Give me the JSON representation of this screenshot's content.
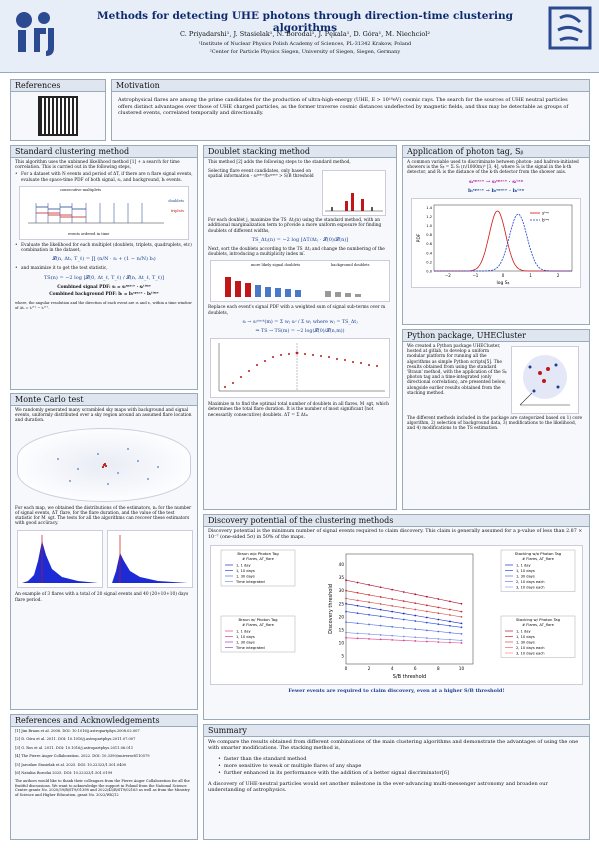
{
  "header": {
    "title": "Methods for detecting UHE photons through direction-time clustering algorithms",
    "authors": "C. Priyadarshi¹, J. Stasielak¹, N. Borodai¹, J. Pękala¹, D. Góra¹, M. Niechciol²",
    "aff1": "¹Institute of Nuclear Physics Polish Academy of Sciences, PL-31342 Krakow, Poland",
    "aff2": "²Center for Particle Physics Siegen, University of Siegen, Siegen, Germany"
  },
  "references_box": {
    "title": "References"
  },
  "motivation": {
    "title": "Motivation",
    "text": "Astrophysical flares are among the prime candidates for the production of ultra-high-energy (UHE, E > 10¹⁸eV) cosmic rays. The search for the sources of UHE neutral particles offers distinct advantages over those of UHE charged particles, as the former traverse cosmic distances undeflected by magnetic fields, and thus may be detectable as groups of clustered events, correlated temporally and directionally."
  },
  "standard": {
    "title": "Standard clustering method",
    "intro": "This algorithm uses the unbinned likelihood method [1] + a search for time correlation. This is carried out in the following steps,",
    "b1": "For a dataset with N events and period of ΔT, if there are n flare signal events, evaluate the space-time PDF of both signal, sᵢ, and background, bᵢ events.",
    "fig_top": "consecutive multiplets",
    "fig_bottom": "events ordered in time",
    "fig_doublets": "doublets",
    "fig_triplets": "triplets",
    "b2": "Evaluate the likelihood for each multiplet (doublets, triplets, quadruplets, etc) combination in the dataset,",
    "eq1": "𝓛(n, Δtᵢ, T_ℓ) = ∏ (n/N · sᵢ + (1 − n/N) bᵢ)",
    "b3": "and maximize it to get the test statistic,",
    "eq2": "TS(n) = −2 log [𝓛(0, Δt_ℓ, T_ℓ) / 𝓛(n, Δt_ℓ, T_ℓ)]",
    "combined_signal": "Combined signal PDF:  sᵢ = sᵢˢᵖᵃᶜᵉ · sᵢᵗⁱᵐᵉ",
    "combined_bg": "Combined background PDF:  bᵢ = bᵢˢᵖᵃᶜᵉ · bᵢᵗⁱᵐᵉ",
    "note": "where, the angular resolution and the direction of each event are σᵢ and rᵢ, within a time window of Δtᵢ = tᵢʲ⁺ⁿ − tᵢʲ⁺¹."
  },
  "monte_carlo": {
    "title": "Monte Carlo test",
    "intro": "We randomly generated many scrambled sky maps with background and signal events, uniformly distributed over a sky region around an assumed flare location and duration.",
    "text": "For each map, we obtained the distributions of the estimators, nₛ for the number of signal events, ΔT_flare, for the flare duration, and the value of the test statistic for M_sgt. The tests for all the algorithms can recover these estimators with good accuracy.",
    "caption": "An example of 3 flares with a total of 20 signal events and 40 (20+10+10) days flare period."
  },
  "doublet": {
    "title": "Doublet stacking method",
    "intro": "This method [2] adds the following steps to the standard method,",
    "s1": "Selecting flare event candidates, only based on spatial information - sᵢˢᵖᵃᶜᵉ/bᵢˢᵖᵃᶜᵉ > S/B threshold",
    "s2": "For each doublet j, maximize the TS_Δtⱼ(n) using the standard method, with an additional marginalization term to provide a more uniform exposure for finding doublets of different widths,",
    "eq": "TS_Δtⱼ(n) = −2 log [ΔT/Δtⱼ · 𝓛(0)/𝓛(n)]",
    "after": "Next, sort the doublets according to the TS_Δtⱼ and change the numbering of the doublets, introducing a multiplicity index m.",
    "legend_doublets": "more likely signal doublets",
    "legend_bg": "background doublets",
    "s3": "Replace each event's signal PDF with a weighted sum of signal sub-terms over m doublets,",
    "eq3": "sᵢ → sᵢˢᵗᵃᶜᵏ(m) = Σ wⱼ sᵢʲ / Σ wⱼ   where wⱼ = TS_Δtⱼ",
    "eq4": "⇒ TS → TS(m) = −2 log(𝓛(0)/𝓛(n,m))",
    "after3": "Maximize m to find the optimal total number of doublets in all flares, M_sgt, which determines the total flare duration. It is the number of most significant (not necessarily consecutive) doublets. ΔT = Σ Δtₘ"
  },
  "photon_tag": {
    "title": "Application of photon tag, Sᵦ",
    "text": "A common variable used to discriminate between photon- and hadron-initiated showers is the Sᵦ = Σᵢ Sᵢ (rᵢ/1000m)ᵇ [3, 4], where Sᵢ is the signal in the k-th detector, and Rᵢ is the distance of the k-th detector from the shower axis.",
    "eq_s": "sᵢˢᵖᵃᶜᵉ → sᵢˢᵖᵃᶜᵉ · sᵢᵗᵃᵍ",
    "eq_b": "bᵢˢᵖᵃᶜᵉ → bᵢˢᵖᵃᶜᵉ · bᵢᵗᵃᵍ",
    "legend_s": "sᵗᵃᵍ",
    "legend_b": "bᵗᵃᵍ",
    "xlabel": "log Sᵦ",
    "ylabel": "PDF",
    "xticks": [
      "−2",
      "−1",
      "0",
      "1",
      "2"
    ],
    "yticks": [
      "0.0",
      "0.2",
      "0.4",
      "0.6",
      "0.8",
      "1.0",
      "1.2",
      "1.4"
    ]
  },
  "python": {
    "title": "Python package, UHECluster",
    "text1": "We created a Python package UHECluster, hosted at gitlab, to develop a uniform modular platform for running all the algorithms as simple Python scripts[5]. The results obtained from using the standard 'Braun' method, with the application of the Sᵦ photon tag and a time-integrated (only directional correlation), are presented below, alongside earlier results obtained from the stacking method.",
    "text2": "The different methods included in the package are categorized based on 1) core algorithm, 2) selection of background data, 3) modifications to the likelihood, and 4) modifications to the TS estimation."
  },
  "discovery": {
    "title": "Discovery potential of the clustering methods",
    "text": "Discovery potential is the minimum number of signal events required to claim discovery. This claim is generally assumed for a p-value of less than 2.87 × 10⁻⁷ (one-sided 5σ) in 50% of the maps.",
    "legend1_title": "Braun w/o Photon Tag",
    "legend1_sub": "# Flares, ΔT_flare",
    "legend1_items": [
      "1, 1 day",
      "1, 10 days",
      "1, 30 days",
      "Time integrated"
    ],
    "legend2_title": "Braun w/ Photon Tag",
    "legend2_sub": "# Flares, ΔT_flare",
    "legend2_items": [
      "1, 1 day",
      "1, 10 days",
      "1, 30 days",
      "Time integrated"
    ],
    "legend3_title": "Stacking w/o Photon Tag",
    "legend3_sub": "# Flares, ΔT_flare",
    "legend3_items": [
      "1, 1 day",
      "1, 10 days",
      "1, 30 days",
      "2, 10 days each",
      "3, 10 days each"
    ],
    "legend4_title": "Stacking w/ Photon Tag",
    "legend4_sub": "# Flares, ΔT_flare",
    "legend4_items": [
      "1, 1 day",
      "1, 10 days",
      "1, 30 days",
      "2, 10 days each",
      "3, 10 days each"
    ],
    "xlabel": "S/B threshold",
    "ylabel": "Discovery threshold",
    "xticks": [
      "0",
      "2",
      "4",
      "6",
      "8",
      "10"
    ],
    "yticks": [
      "5",
      "10",
      "15",
      "20",
      "25",
      "30",
      "35",
      "40"
    ],
    "footer": "Fewer events are required to claim discovery, even at a higher S/B threshold!"
  },
  "refs": {
    "title": "References and Acknowledgements",
    "items": [
      "[1]  Jim Braun et al. 2008. DOI: 10.1016/j.astropartphys.2008.02.007",
      "[2]  D. Góra et al. 2011. DOI: 10.1016/j.astropartphys.2011.07.007",
      "[3]  G. Ros et al. 2011. DOI: 10.1016/j.astropartphys.2011.06.011",
      "[4]  The Pierre Auger Collaboration. 2022. DOI: 10.3390/universe8110579",
      "[5]  Jarosław Stasielak et al. 2025. DOI: 10.22323/1.501.0400",
      "[6]  Nataliia Borodai 2025. DOI: 10.22323/1.501.0199"
    ],
    "ack": "The authors would like to thank their colleagues from the Pierre Auger Collaboration for all the fruitful discussions. We want to acknowledge the support in Poland from the National Science Centre grants No. 2020/39/B/ST9/01398 and 2022/45/B/ST9/02163 as well as from the Ministry of Science and Higher Education, grant No. 2022/WK/12"
  },
  "summary": {
    "title": "Summary",
    "intro": "We compare the results obtained from different combinations of the main clustering algorithms and demonstrate the advantages of using the one with smarter modifications. The stacking method is,",
    "b1": "faster than the standard method",
    "b2": "more sensitive to weak or multiple flares of any shape",
    "b3": "further enhanced in its performance with the addition of a better signal discriminator[6]",
    "closing": "A discovery of UHE-neutral particles would set another milestone in the ever-advancing multi-messenger astronomy and broaden our understanding of astrophysics."
  },
  "colors": {
    "accent": "#1a3f8f",
    "highlight": "#c01818",
    "magenta": "#b0139a"
  }
}
